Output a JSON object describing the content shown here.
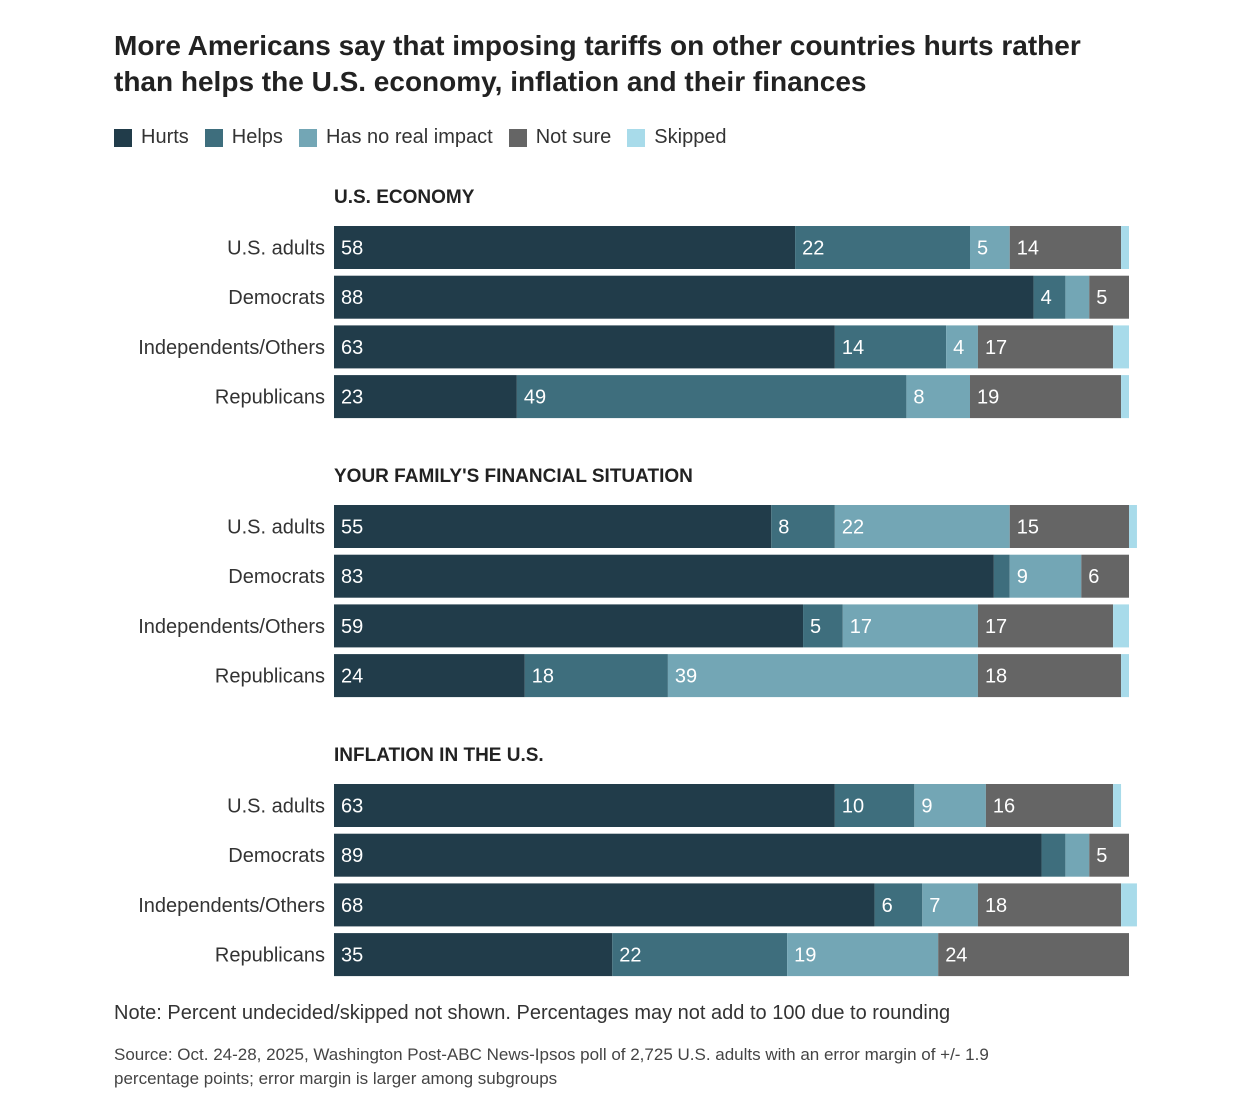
{
  "title": "More Americans say that imposing tariffs on other countries hurts rather than helps the U.S. economy, inflation and their finances",
  "legend": [
    {
      "label": "Hurts",
      "color": "#213c4a"
    },
    {
      "label": "Helps",
      "color": "#3e6e7d"
    },
    {
      "label": "Has no real impact",
      "color": "#73a6b5"
    },
    {
      "label": "Not sure",
      "color": "#656565"
    },
    {
      "label": "Skipped",
      "color": "#a8dbea"
    }
  ],
  "note": "Note: Percent undecided/skipped not shown. Percentages may not add to 100 due to rounding",
  "source": "Source: Oct. 24-28, 2025, Washington Post-ABC News-Ipsos poll of 2,725 U.S. adults with an error margin of +/- 1.9 percentage points; error margin is larger among subgroups",
  "chart_data": {
    "type": "bar",
    "orientation": "horizontal",
    "stacked": true,
    "series_names": [
      "Hurts",
      "Helps",
      "Has no real impact",
      "Not sure",
      "Skipped"
    ],
    "panels": [
      {
        "title": "U.S. ECONOMY",
        "rows": [
          {
            "label": "U.S. adults",
            "values": [
              58,
              22,
              5,
              14,
              1
            ],
            "labels": [
              "58",
              "22",
              "5",
              "14",
              ""
            ]
          },
          {
            "label": "Democrats",
            "values": [
              88,
              4,
              3,
              5,
              0
            ],
            "labels": [
              "88",
              "4",
              "",
              "5",
              ""
            ]
          },
          {
            "label": "Independents/Others",
            "values": [
              63,
              14,
              4,
              17,
              2
            ],
            "labels": [
              "63",
              "14",
              "4",
              "17",
              ""
            ]
          },
          {
            "label": "Republicans",
            "values": [
              23,
              49,
              8,
              19,
              1
            ],
            "labels": [
              "23",
              "49",
              "8",
              "19",
              ""
            ]
          }
        ]
      },
      {
        "title": "YOUR FAMILY'S FINANCIAL SITUATION",
        "rows": [
          {
            "label": "U.S. adults",
            "values": [
              55,
              8,
              22,
              15,
              1
            ],
            "labels": [
              "55",
              "8",
              "22",
              "15",
              ""
            ]
          },
          {
            "label": "Democrats",
            "values": [
              83,
              2,
              9,
              6,
              0
            ],
            "labels": [
              "83",
              "",
              "9",
              "6",
              ""
            ]
          },
          {
            "label": "Independents/Others",
            "values": [
              59,
              5,
              17,
              17,
              2
            ],
            "labels": [
              "59",
              "5",
              "17",
              "17",
              ""
            ]
          },
          {
            "label": "Republicans",
            "values": [
              24,
              18,
              39,
              18,
              1
            ],
            "labels": [
              "24",
              "18",
              "39",
              "18",
              ""
            ]
          }
        ]
      },
      {
        "title": "INFLATION IN THE U.S.",
        "rows": [
          {
            "label": "U.S. adults",
            "values": [
              63,
              10,
              9,
              16,
              1
            ],
            "labels": [
              "63",
              "10",
              "9",
              "16",
              ""
            ]
          },
          {
            "label": "Democrats",
            "values": [
              89,
              3,
              3,
              5,
              0
            ],
            "labels": [
              "89",
              "",
              "",
              "5",
              ""
            ]
          },
          {
            "label": "Independents/Others",
            "values": [
              68,
              6,
              7,
              18,
              2
            ],
            "labels": [
              "68",
              "6",
              "7",
              "18",
              ""
            ]
          },
          {
            "label": "Republicans",
            "values": [
              35,
              22,
              19,
              24,
              0
            ],
            "labels": [
              "35",
              "22",
              "19",
              "24",
              ""
            ]
          }
        ]
      }
    ],
    "xlim": [
      0,
      100
    ],
    "legend_position": "top"
  }
}
